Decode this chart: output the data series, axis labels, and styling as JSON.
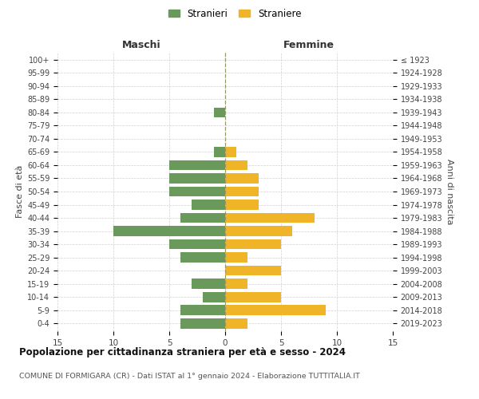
{
  "age_groups": [
    "0-4",
    "5-9",
    "10-14",
    "15-19",
    "20-24",
    "25-29",
    "30-34",
    "35-39",
    "40-44",
    "45-49",
    "50-54",
    "55-59",
    "60-64",
    "65-69",
    "70-74",
    "75-79",
    "80-84",
    "85-89",
    "90-94",
    "95-99",
    "100+"
  ],
  "birth_years": [
    "2019-2023",
    "2014-2018",
    "2009-2013",
    "2004-2008",
    "1999-2003",
    "1994-1998",
    "1989-1993",
    "1984-1988",
    "1979-1983",
    "1974-1978",
    "1969-1973",
    "1964-1968",
    "1959-1963",
    "1954-1958",
    "1949-1953",
    "1944-1948",
    "1939-1943",
    "1934-1938",
    "1929-1933",
    "1924-1928",
    "≤ 1923"
  ],
  "maschi": [
    4,
    4,
    2,
    3,
    0,
    4,
    5,
    10,
    4,
    3,
    5,
    5,
    5,
    1,
    0,
    0,
    1,
    0,
    0,
    0,
    0
  ],
  "femmine": [
    2,
    9,
    5,
    2,
    5,
    2,
    5,
    6,
    8,
    3,
    3,
    3,
    2,
    1,
    0,
    0,
    0,
    0,
    0,
    0,
    0
  ],
  "color_maschi": "#6a9a5b",
  "color_femmine": "#f0b429",
  "title": "Popolazione per cittadinanza straniera per età e sesso - 2024",
  "subtitle": "COMUNE DI FORMIGARA (CR) - Dati ISTAT al 1° gennaio 2024 - Elaborazione TUTTITALIA.IT",
  "xlabel_left": "Maschi",
  "xlabel_right": "Femmine",
  "ylabel_left": "Fasce di età",
  "ylabel_right": "Anni di nascita",
  "legend_maschi": "Stranieri",
  "legend_femmine": "Straniere",
  "xlim": 15,
  "background_color": "#ffffff",
  "grid_color": "#cccccc"
}
